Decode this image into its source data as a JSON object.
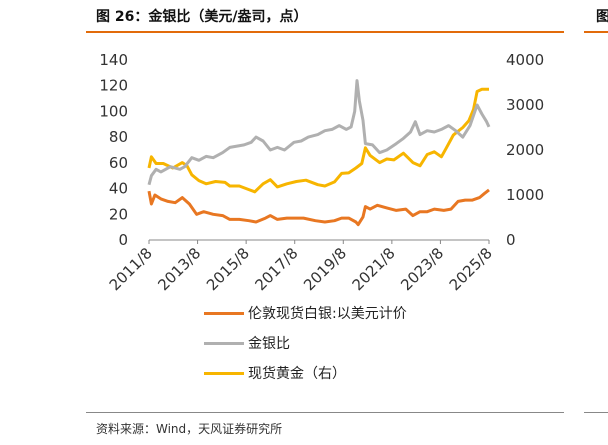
{
  "header": {
    "title": "图 26：金银比（美元/盎司，点）",
    "right_title_fragment": "图"
  },
  "footer": {
    "source": "资料来源：Wind，天风证券研究所"
  },
  "colors": {
    "accent": "#e26b0a",
    "silver": "#e87722",
    "ratio": "#b0b0b0",
    "gold": "#f7b500"
  },
  "chart_data": {
    "type": "line",
    "title": "金银比（美元/盎司，点）",
    "x_tick_labels": [
      "2011/8",
      "2013/8",
      "2015/8",
      "2017/8",
      "2019/8",
      "2021/8",
      "2023/8",
      "2025/8"
    ],
    "x_range": [
      2011.5,
      2025.8
    ],
    "y_left": {
      "min": 0,
      "max": 140,
      "ticks": [
        "0",
        "20",
        "40",
        "60",
        "80",
        "100",
        "120",
        "140"
      ]
    },
    "y_right": {
      "min": 0,
      "max": 4000,
      "ticks": [
        "0",
        "1000",
        "2000",
        "3000",
        "4000"
      ]
    },
    "series": [
      {
        "name": "伦敦现货白银:以美元计价",
        "axis": "left",
        "color": "#e87722",
        "points": [
          [
            2011.5,
            38
          ],
          [
            2011.6,
            28
          ],
          [
            2011.75,
            35
          ],
          [
            2012.0,
            32
          ],
          [
            2012.3,
            30
          ],
          [
            2012.6,
            29
          ],
          [
            2012.9,
            33
          ],
          [
            2013.2,
            28
          ],
          [
            2013.5,
            20
          ],
          [
            2013.8,
            22
          ],
          [
            2014.2,
            20
          ],
          [
            2014.6,
            19
          ],
          [
            2014.9,
            16
          ],
          [
            2015.3,
            16
          ],
          [
            2015.7,
            15
          ],
          [
            2016.0,
            14
          ],
          [
            2016.4,
            17
          ],
          [
            2016.6,
            19
          ],
          [
            2016.9,
            16
          ],
          [
            2017.3,
            17
          ],
          [
            2017.7,
            17
          ],
          [
            2018.0,
            17
          ],
          [
            2018.5,
            15
          ],
          [
            2018.9,
            14
          ],
          [
            2019.3,
            15
          ],
          [
            2019.6,
            17
          ],
          [
            2019.9,
            17
          ],
          [
            2020.2,
            14
          ],
          [
            2020.3,
            12
          ],
          [
            2020.5,
            18
          ],
          [
            2020.6,
            26
          ],
          [
            2020.8,
            24
          ],
          [
            2021.1,
            27
          ],
          [
            2021.5,
            25
          ],
          [
            2021.9,
            23
          ],
          [
            2022.3,
            24
          ],
          [
            2022.6,
            19
          ],
          [
            2022.9,
            22
          ],
          [
            2023.2,
            22
          ],
          [
            2023.5,
            24
          ],
          [
            2023.9,
            23
          ],
          [
            2024.2,
            24
          ],
          [
            2024.5,
            30
          ],
          [
            2024.8,
            31
          ],
          [
            2025.1,
            31
          ],
          [
            2025.4,
            33
          ],
          [
            2025.6,
            36
          ],
          [
            2025.8,
            39
          ]
        ]
      },
      {
        "name": "金银比",
        "axis": "left",
        "color": "#b0b0b0",
        "points": [
          [
            2011.5,
            43
          ],
          [
            2011.6,
            50
          ],
          [
            2011.8,
            55
          ],
          [
            2012.0,
            53
          ],
          [
            2012.4,
            57
          ],
          [
            2012.8,
            55
          ],
          [
            2013.0,
            57
          ],
          [
            2013.3,
            64
          ],
          [
            2013.6,
            62
          ],
          [
            2013.9,
            65
          ],
          [
            2014.2,
            64
          ],
          [
            2014.6,
            68
          ],
          [
            2014.9,
            72
          ],
          [
            2015.2,
            73
          ],
          [
            2015.5,
            74
          ],
          [
            2015.8,
            76
          ],
          [
            2016.0,
            80
          ],
          [
            2016.3,
            77
          ],
          [
            2016.6,
            70
          ],
          [
            2016.9,
            72
          ],
          [
            2017.2,
            70
          ],
          [
            2017.6,
            76
          ],
          [
            2017.9,
            77
          ],
          [
            2018.2,
            80
          ],
          [
            2018.6,
            82
          ],
          [
            2018.9,
            85
          ],
          [
            2019.2,
            86
          ],
          [
            2019.5,
            89
          ],
          [
            2019.8,
            86
          ],
          [
            2020.0,
            88
          ],
          [
            2020.15,
            100
          ],
          [
            2020.25,
            124
          ],
          [
            2020.35,
            108
          ],
          [
            2020.5,
            93
          ],
          [
            2020.6,
            75
          ],
          [
            2020.9,
            74
          ],
          [
            2021.2,
            68
          ],
          [
            2021.5,
            70
          ],
          [
            2021.9,
            75
          ],
          [
            2022.2,
            79
          ],
          [
            2022.5,
            84
          ],
          [
            2022.7,
            92
          ],
          [
            2022.9,
            82
          ],
          [
            2023.2,
            85
          ],
          [
            2023.5,
            84
          ],
          [
            2023.8,
            86
          ],
          [
            2024.1,
            89
          ],
          [
            2024.4,
            85
          ],
          [
            2024.7,
            80
          ],
          [
            2025.0,
            89
          ],
          [
            2025.3,
            105
          ],
          [
            2025.5,
            98
          ],
          [
            2025.7,
            92
          ],
          [
            2025.8,
            88
          ]
        ]
      },
      {
        "name": "现货黄金（右）",
        "axis": "right",
        "color": "#f7b500",
        "points": [
          [
            2011.5,
            1600
          ],
          [
            2011.6,
            1850
          ],
          [
            2011.8,
            1700
          ],
          [
            2012.1,
            1700
          ],
          [
            2012.5,
            1600
          ],
          [
            2012.9,
            1720
          ],
          [
            2013.1,
            1650
          ],
          [
            2013.3,
            1450
          ],
          [
            2013.6,
            1320
          ],
          [
            2013.9,
            1250
          ],
          [
            2014.3,
            1300
          ],
          [
            2014.7,
            1280
          ],
          [
            2014.9,
            1200
          ],
          [
            2015.3,
            1200
          ],
          [
            2015.7,
            1120
          ],
          [
            2015.95,
            1070
          ],
          [
            2016.3,
            1250
          ],
          [
            2016.6,
            1340
          ],
          [
            2016.9,
            1180
          ],
          [
            2017.3,
            1250
          ],
          [
            2017.7,
            1300
          ],
          [
            2018.1,
            1330
          ],
          [
            2018.6,
            1230
          ],
          [
            2018.9,
            1200
          ],
          [
            2019.3,
            1290
          ],
          [
            2019.6,
            1480
          ],
          [
            2019.9,
            1490
          ],
          [
            2020.2,
            1600
          ],
          [
            2020.45,
            1700
          ],
          [
            2020.6,
            2050
          ],
          [
            2020.8,
            1880
          ],
          [
            2021.2,
            1720
          ],
          [
            2021.5,
            1800
          ],
          [
            2021.8,
            1780
          ],
          [
            2022.2,
            1930
          ],
          [
            2022.6,
            1720
          ],
          [
            2022.9,
            1650
          ],
          [
            2023.2,
            1900
          ],
          [
            2023.5,
            1960
          ],
          [
            2023.8,
            1850
          ],
          [
            2024.0,
            2040
          ],
          [
            2024.3,
            2330
          ],
          [
            2024.7,
            2500
          ],
          [
            2024.95,
            2650
          ],
          [
            2025.15,
            2900
          ],
          [
            2025.3,
            3300
          ],
          [
            2025.5,
            3350
          ],
          [
            2025.8,
            3350
          ]
        ]
      }
    ],
    "legend": [
      "伦敦现货白银:以美元计价",
      "金银比",
      "现货黄金（右）"
    ]
  }
}
